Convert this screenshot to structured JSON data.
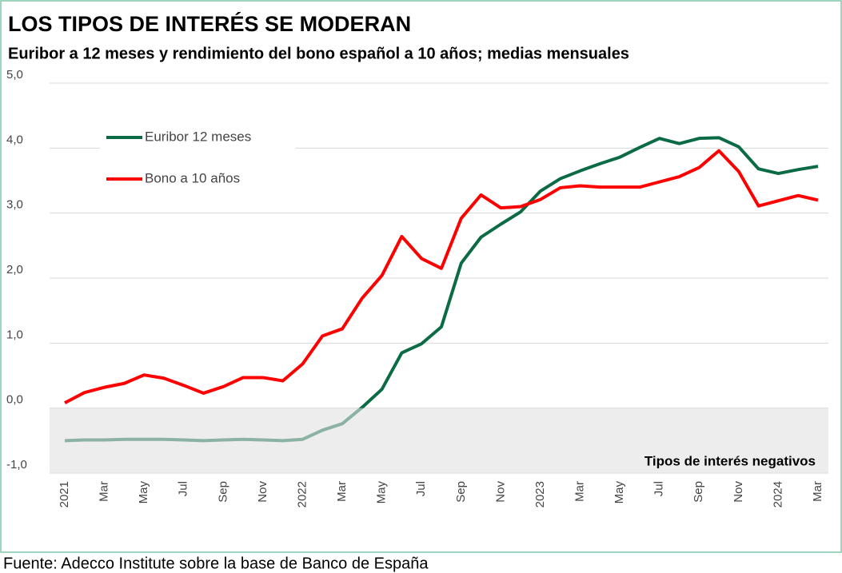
{
  "chart_data": {
    "type": "line",
    "title": "LOS TIPOS DE INTERÉS SE MODERAN",
    "subtitle": "Euribor a 12 meses y rendimiento del bono español a 10 años; medias mensuales",
    "source": "Fuente: Adecco Institute sobre la base de Banco de España",
    "annotation": "Tipos de interés negativos",
    "shade": [
      -1,
      0
    ],
    "categories": [
      "2021",
      null,
      "Mar",
      null,
      "May",
      null,
      "Jul",
      null,
      "Sep",
      null,
      "Nov",
      null,
      "2022",
      null,
      "Mar",
      null,
      "May",
      null,
      "Jul",
      null,
      "Sep",
      null,
      "Nov",
      null,
      "2023",
      null,
      "Mar",
      null,
      "May",
      null,
      "Jul",
      null,
      "Sep",
      null,
      "Nov",
      null,
      "2024",
      null,
      "Mar"
    ],
    "series": [
      {
        "name": "Euribor 12 meses",
        "color": "#0b6b44",
        "values": [
          -0.5,
          -0.49,
          -0.49,
          -0.48,
          -0.48,
          -0.48,
          -0.49,
          -0.5,
          -0.49,
          -0.48,
          -0.49,
          -0.5,
          -0.48,
          -0.34,
          -0.24,
          0.01,
          0.29,
          0.85,
          0.99,
          1.25,
          2.23,
          2.63,
          2.83,
          3.02,
          3.34,
          3.53,
          3.65,
          3.76,
          3.86,
          4.01,
          4.15,
          4.07,
          4.15,
          4.16,
          4.02,
          3.68,
          3.61,
          3.67,
          3.72
        ]
      },
      {
        "name": "Bono a 10 años",
        "color": "#ff0000",
        "values": [
          0.08,
          0.24,
          0.32,
          0.38,
          0.51,
          0.46,
          0.35,
          0.23,
          0.33,
          0.47,
          0.47,
          0.42,
          0.68,
          1.11,
          1.22,
          1.69,
          2.04,
          2.64,
          2.3,
          2.15,
          2.92,
          3.28,
          3.08,
          3.1,
          3.21,
          3.39,
          3.42,
          3.4,
          3.4,
          3.4,
          3.48,
          3.56,
          3.7,
          3.96,
          3.64,
          3.11,
          3.19,
          3.27,
          3.2
        ]
      }
    ],
    "ylim": [
      -1,
      5
    ],
    "yticks": [
      {
        "value": -1,
        "label": "-1,0"
      },
      {
        "value": 0,
        "label": "0,0"
      },
      {
        "value": 1,
        "label": "1,0"
      },
      {
        "value": 2,
        "label": "2,0"
      },
      {
        "value": 3,
        "label": "3,0"
      },
      {
        "value": 4,
        "label": "4,0"
      },
      {
        "value": 5,
        "label": "5,0"
      }
    ],
    "grid": true,
    "legend": "upper left"
  }
}
